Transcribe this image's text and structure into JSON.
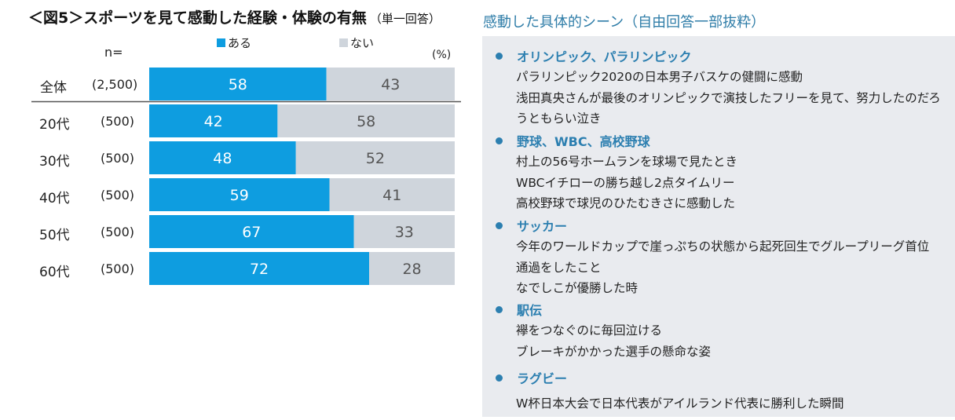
{
  "title": "＜図5＞スポーツを見て感動した経験・体験の有無",
  "title_sub": "（単一回答）",
  "n_label": "n=",
  "unit": "(%)",
  "legend": [
    {
      "label": "ある",
      "color": "#0e9de0"
    },
    {
      "label": "ない",
      "color": "#cfd5dc"
    }
  ],
  "chart_data": {
    "type": "bar",
    "orientation": "horizontal",
    "stacked": true,
    "categories": [
      "全体",
      "20代",
      "30代",
      "40代",
      "50代",
      "60代"
    ],
    "n": [
      "(2,500)",
      "(500)",
      "(500)",
      "(500)",
      "(500)",
      "(500)"
    ],
    "series": [
      {
        "name": "ある",
        "values": [
          58,
          42,
          48,
          59,
          67,
          72
        ],
        "color": "#0e9de0"
      },
      {
        "name": "ない",
        "values": [
          43,
          58,
          52,
          41,
          33,
          28
        ],
        "color": "#cfd5dc"
      }
    ],
    "xlim": [
      0,
      100
    ]
  },
  "panel": {
    "title": "感動した具体的シーン（自由回答一部抜粋）",
    "categories": [
      {
        "label": "オリンピック、パラリンピック",
        "items": [
          "パラリンピック2020の日本男子バスケの健闘に感動",
          "浅田真央さんが最後のオリンピックで演技したフリーを見て、努力したのだろ",
          "うともらい泣き"
        ]
      },
      {
        "label": "野球、WBC、高校野球",
        "items": [
          "村上の56号ホームランを球場で見たとき",
          "WBCイチローの勝ち越し2点タイムリー",
          "高校野球で球児のひたむきさに感動した"
        ]
      },
      {
        "label": "サッカー",
        "items": [
          "今年のワールドカップで崖っぷちの状態から起死回生でグループリーグ首位",
          "通過をしたこと",
          "なでしこが優勝した時"
        ]
      },
      {
        "label": "駅伝",
        "items": [
          "襷をつなぐのに毎回泣ける",
          "ブレーキがかかった選手の懸命な姿"
        ]
      },
      {
        "label": "ラグビー",
        "items": [
          "W杯日本大会で日本代表がアイルランド代表に勝利した瞬間"
        ]
      }
    ]
  }
}
